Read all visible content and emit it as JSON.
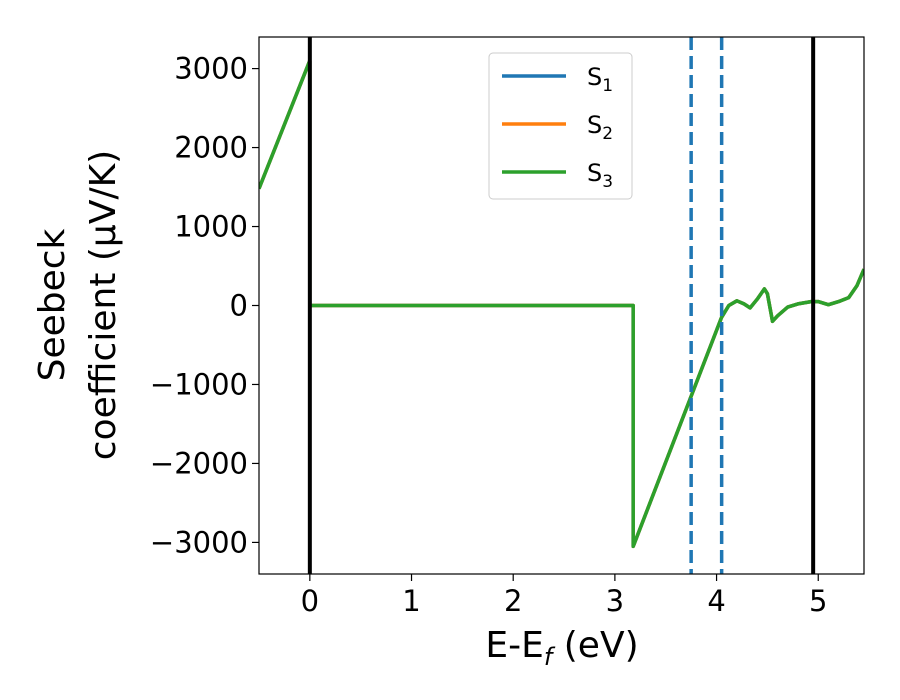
{
  "chart_data": {
    "type": "line",
    "xlabel": "E-E",
    "xlabel_subscript": "f",
    "xlabel_unit": " (eV)",
    "ylabel_line1": "Seebeck",
    "ylabel_line2": "coefficient  (μV/K)",
    "xlim": [
      -0.5,
      5.45
    ],
    "ylim": [
      -3400,
      3400
    ],
    "xticks": [
      0,
      1,
      2,
      3,
      4,
      5
    ],
    "xtick_labels": [
      "0",
      "1",
      "2",
      "3",
      "4",
      "5"
    ],
    "yticks": [
      -3000,
      -2000,
      -1000,
      0,
      1000,
      2000,
      3000
    ],
    "ytick_labels": [
      "−3000",
      "−2000",
      "−1000",
      "0",
      "1000",
      "2000",
      "3000"
    ],
    "grid": false,
    "legend_position": "top-center",
    "series": [
      {
        "name": "S",
        "subscript": "1",
        "color": "#1f77b4",
        "x": [
          -0.5,
          0.0,
          0.0,
          3.18,
          3.18,
          4.05,
          4.12,
          4.2,
          4.27,
          4.33,
          4.4,
          4.47,
          4.5,
          4.55,
          4.6,
          4.7,
          4.8,
          4.93,
          5.0,
          5.1,
          5.2,
          5.3,
          5.38,
          5.45
        ],
        "y": [
          1480,
          3100,
          0,
          0,
          -3050,
          -150,
          0,
          60,
          20,
          -30,
          80,
          210,
          150,
          -200,
          -130,
          -20,
          20,
          50,
          50,
          10,
          50,
          100,
          250,
          460
        ]
      },
      {
        "name": "S",
        "subscript": "2",
        "color": "#ff7f0e",
        "x": [
          -0.5,
          0.0,
          0.0,
          3.18,
          3.18,
          4.05,
          4.12,
          4.2,
          4.27,
          4.33,
          4.4,
          4.47,
          4.5,
          4.55,
          4.6,
          4.7,
          4.8,
          4.93,
          5.0,
          5.1,
          5.2,
          5.3,
          5.38,
          5.45
        ],
        "y": [
          1480,
          3100,
          0,
          0,
          -3050,
          -150,
          0,
          60,
          20,
          -30,
          80,
          210,
          150,
          -200,
          -130,
          -20,
          20,
          50,
          50,
          10,
          50,
          100,
          250,
          460
        ]
      },
      {
        "name": "S",
        "subscript": "3",
        "color": "#2ca02c",
        "x": [
          -0.5,
          0.0,
          0.0,
          3.18,
          3.18,
          4.05,
          4.12,
          4.2,
          4.27,
          4.33,
          4.4,
          4.47,
          4.5,
          4.55,
          4.6,
          4.7,
          4.8,
          4.93,
          5.0,
          5.1,
          5.2,
          5.3,
          5.38,
          5.45
        ],
        "y": [
          1480,
          3100,
          0,
          0,
          -3050,
          -150,
          0,
          60,
          20,
          -30,
          80,
          210,
          150,
          -200,
          -130,
          -20,
          20,
          50,
          50,
          10,
          50,
          100,
          250,
          460
        ]
      }
    ],
    "vertical_lines": [
      {
        "x": 0.0,
        "style": "solid",
        "color": "#000000"
      },
      {
        "x": 4.95,
        "style": "solid",
        "color": "#000000"
      },
      {
        "x": 3.75,
        "style": "dashed",
        "color": "#1f77b4"
      },
      {
        "x": 4.05,
        "style": "dashed",
        "color": "#1f77b4"
      }
    ]
  }
}
